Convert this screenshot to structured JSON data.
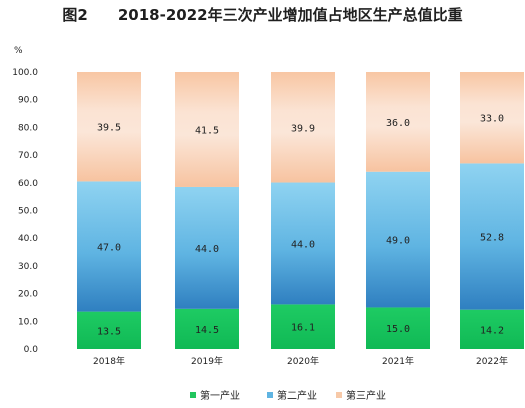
{
  "chart_data": {
    "type": "bar",
    "stacked": true,
    "title": "图2　　2018-2022年三次产业增加值占地区生产总值比重",
    "ylabel": "%",
    "xlabel": "",
    "ylim": [
      0,
      100
    ],
    "yticks": [
      "0.0",
      "10.0",
      "20.0",
      "30.0",
      "40.0",
      "50.0",
      "60.0",
      "70.0",
      "80.0",
      "90.0",
      "100.0"
    ],
    "categories": [
      "2018年",
      "2019年",
      "2020年",
      "2021年",
      "2022年"
    ],
    "series": [
      {
        "name": "第一产业",
        "values": [
          13.5,
          14.5,
          16.1,
          15.0,
          14.2
        ],
        "color": "#22c55e"
      },
      {
        "name": "第二产业",
        "values": [
          47.0,
          44.0,
          44.0,
          49.0,
          52.8
        ],
        "color": "#5fb4e2"
      },
      {
        "name": "第三产业",
        "values": [
          39.5,
          41.5,
          39.9,
          36.0,
          33.0
        ],
        "color": "#f7c9a8"
      }
    ],
    "grid": false,
    "legend": "bottom"
  }
}
